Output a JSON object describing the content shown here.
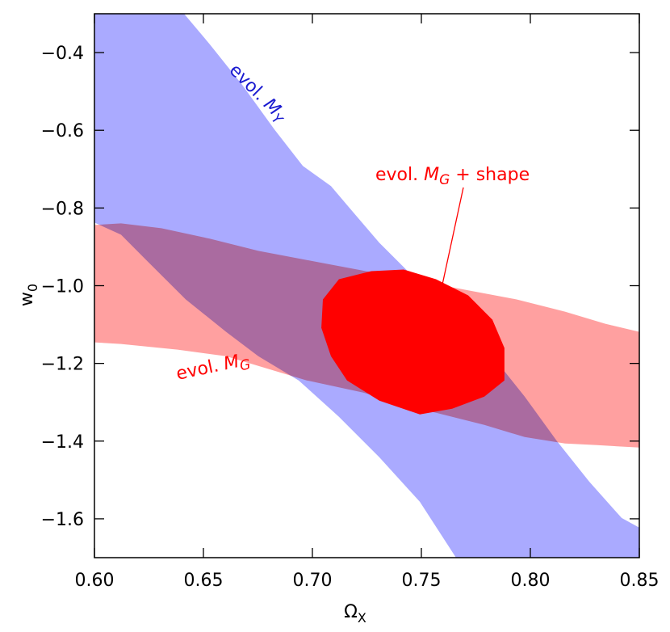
{
  "chart_data": {
    "type": "contour",
    "xlabel": {
      "text": "Ω",
      "sub": "X"
    },
    "ylabel": {
      "text": "w",
      "sub": "0"
    },
    "xlim": [
      0.6,
      0.85
    ],
    "ylim": [
      -1.7,
      -0.3
    ],
    "xticks": [
      {
        "value": 0.6,
        "label": "0.60"
      },
      {
        "value": 0.65,
        "label": "0.65"
      },
      {
        "value": 0.7,
        "label": "0.70"
      },
      {
        "value": 0.75,
        "label": "0.75"
      },
      {
        "value": 0.8,
        "label": "0.80"
      },
      {
        "value": 0.85,
        "label": "0.85"
      }
    ],
    "yticks": [
      {
        "value": -1.6,
        "label": "−1.6"
      },
      {
        "value": -1.4,
        "label": "−1.4"
      },
      {
        "value": -1.2,
        "label": "−1.2"
      },
      {
        "value": -1.0,
        "label": "−1.0"
      },
      {
        "value": -0.8,
        "label": "−0.8"
      },
      {
        "value": -0.6,
        "label": "−0.6"
      },
      {
        "value": -0.4,
        "label": "−0.4"
      }
    ],
    "series": [
      {
        "color": "#aaaaff",
        "x": [
          0.6,
          0.6411,
          0.653,
          0.6678,
          0.6826,
          0.6956,
          0.7085,
          0.7196,
          0.7307,
          0.7456,
          0.7641,
          0.7826,
          0.7974,
          0.8122,
          0.827,
          0.8419,
          0.85,
          0.85,
          0.7659,
          0.7493,
          0.7307,
          0.7122,
          0.6937,
          0.6752,
          0.6604,
          0.6419,
          0.6233,
          0.6122,
          0.6
        ],
        "y": [
          -0.3,
          -0.3,
          -0.3792,
          -0.4833,
          -0.5979,
          -0.6917,
          -0.7438,
          -0.8167,
          -0.8896,
          -0.9729,
          -1.0771,
          -1.1813,
          -1.2854,
          -1.4,
          -1.5042,
          -1.5979,
          -1.6229,
          -1.7,
          -1.7,
          -1.5563,
          -1.4417,
          -1.3375,
          -1.2438,
          -1.1813,
          -1.1188,
          -1.0354,
          -0.9313,
          -0.8688,
          -0.8375
        ]
      },
      {
        "color": "#ffa0a0",
        "x": [
          0.6,
          0.6122,
          0.6307,
          0.653,
          0.6752,
          0.7048,
          0.7344,
          0.7641,
          0.7937,
          0.8159,
          0.8344,
          0.85,
          0.85,
          0.8307,
          0.8159,
          0.7974,
          0.7789,
          0.7493,
          0.7233,
          0.6974,
          0.6789,
          0.6604,
          0.6381,
          0.6122,
          0.6
        ],
        "y": [
          -0.8438,
          -0.8396,
          -0.8521,
          -0.8792,
          -0.9104,
          -0.9417,
          -0.9729,
          -1.0042,
          -1.0354,
          -1.0667,
          -1.0979,
          -1.1188,
          -1.4167,
          -1.4104,
          -1.4063,
          -1.3896,
          -1.3583,
          -1.3167,
          -1.275,
          -1.2438,
          -1.2125,
          -1.1813,
          -1.1646,
          -1.15,
          -1.1458
        ]
      },
      {
        "color": "#ff0000",
        "x": [
          0.7048,
          0.7122,
          0.727,
          0.7419,
          0.7567,
          0.7715,
          0.7826,
          0.7881,
          0.7881,
          0.7789,
          0.7641,
          0.7493,
          0.7307,
          0.7159,
          0.7085,
          0.7041
        ],
        "y": [
          -1.0354,
          -0.9833,
          -0.9625,
          -0.9583,
          -0.9833,
          -1.025,
          -1.0875,
          -1.1604,
          -1.2438,
          -1.2854,
          -1.3167,
          -1.3313,
          -1.2958,
          -1.2438,
          -1.1813,
          -1.1083
        ]
      }
    ],
    "annotations": [
      {
        "prefix": "evol. ",
        "math": "M",
        "sub": "Y",
        "color": "#1a1ad0"
      },
      {
        "prefix": "evol. ",
        "math": "M",
        "sub": "G",
        "color": "#ff0000"
      },
      {
        "prefix": "evol. ",
        "math": "M",
        "sub": "G",
        "suffix": " + shape",
        "color": "#ff0000"
      }
    ]
  }
}
